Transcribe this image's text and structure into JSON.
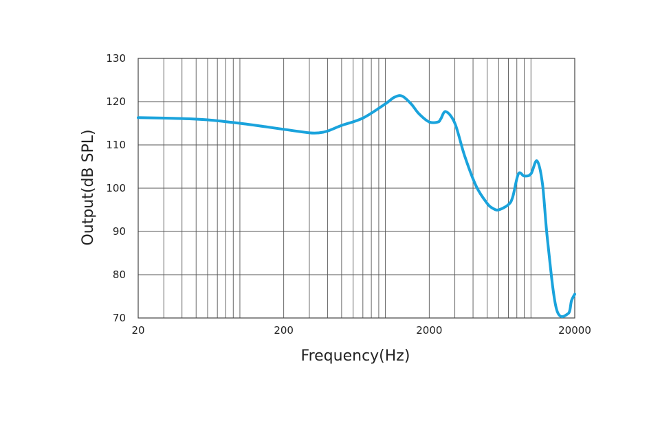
{
  "chart_data": {
    "type": "line",
    "title": "",
    "xlabel": "Frequency(Hz)",
    "ylabel": "Output(dB SPL)",
    "x_scale": "log",
    "xlim": [
      20,
      20000
    ],
    "ylim": [
      70,
      130
    ],
    "x_tick_labels": [
      "20",
      "200",
      "2000",
      "20000"
    ],
    "y_tick_labels": [
      "130",
      "120",
      "110",
      "100",
      "90",
      "80",
      "70"
    ],
    "grid": true,
    "line_color": "#1aa3dc",
    "series": [
      {
        "name": "",
        "x": [
          20,
          40,
          60,
          100,
          150,
          200,
          300,
          350,
          400,
          500,
          700,
          1000,
          1150,
          1300,
          1500,
          1700,
          2000,
          2300,
          2400,
          2600,
          3000,
          3500,
          4200,
          5000,
          5500,
          6000,
          7000,
          7500,
          8200,
          9000,
          10000,
          11000,
          12000,
          13000,
          15000,
          18000,
          19000,
          20000
        ],
        "y": [
          116.3,
          116.1,
          115.8,
          115.0,
          114.2,
          113.6,
          112.8,
          112.8,
          113.2,
          114.5,
          116.2,
          119.5,
          121.0,
          121.3,
          119.5,
          117.2,
          115.3,
          115.3,
          116.0,
          117.7,
          115.0,
          107.5,
          100.5,
          96.5,
          95.3,
          95.0,
          96.2,
          98.0,
          103.3,
          102.8,
          103.3,
          106.3,
          101.0,
          88.0,
          72.0,
          71.0,
          74.0,
          75.5
        ]
      }
    ]
  }
}
